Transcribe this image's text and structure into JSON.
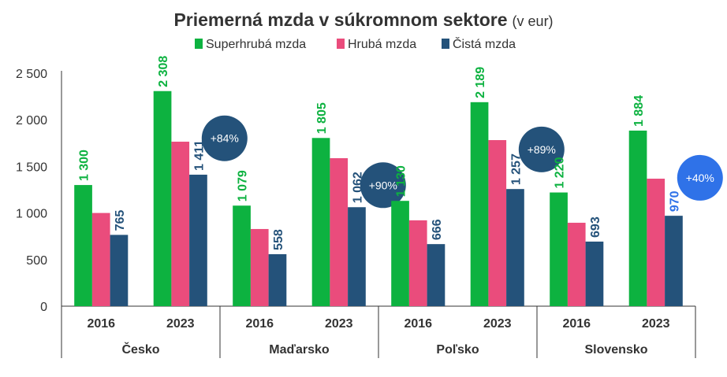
{
  "chart_data": {
    "type": "bar",
    "title": "Priemerná mzda v súkromnom sektore",
    "title_unit": "(v eur)",
    "ylim": [
      0,
      2500
    ],
    "yticks": [
      "0",
      "500",
      "1 000",
      "1 500",
      "2 000",
      "2 500"
    ],
    "ytick_values": [
      0,
      500,
      1000,
      1500,
      2000,
      2500
    ],
    "grid": false,
    "legend_position": "top",
    "colors": {
      "superhruba": "#0db240",
      "hruba": "#ea4c7c",
      "cista": "#24527a",
      "highlight": "#2f72e8",
      "text": "#333333"
    },
    "series": [
      {
        "name": "Superhrubá mzda",
        "key": "superhruba",
        "labeled": true
      },
      {
        "name": "Hrubá mzda",
        "key": "hruba",
        "labeled": false
      },
      {
        "name": "Čistá mzda",
        "key": "cista",
        "labeled": true
      }
    ],
    "groups": [
      {
        "country": "Česko",
        "growth": "+84%",
        "bubble_color": "#24527a",
        "years": [
          {
            "year": "2016",
            "values": [
              1300,
              1000,
              765
            ],
            "labels": [
              "1 300",
              "",
              "765"
            ]
          },
          {
            "year": "2023",
            "values": [
              2308,
              1765,
              1411
            ],
            "labels": [
              "2 308",
              "",
              "1 411"
            ]
          }
        ]
      },
      {
        "country": "Maďarsko",
        "growth": "+90%",
        "bubble_color": "#24527a",
        "years": [
          {
            "year": "2016",
            "values": [
              1079,
              828,
              558
            ],
            "labels": [
              "1 079",
              "",
              "558"
            ]
          },
          {
            "year": "2023",
            "values": [
              1805,
              1588,
              1062
            ],
            "labels": [
              "1 805",
              "",
              "1 062"
            ]
          }
        ]
      },
      {
        "country": "Poľsko",
        "growth": "+89%",
        "bubble_color": "#24527a",
        "years": [
          {
            "year": "2016",
            "values": [
              1130,
              921,
              666
            ],
            "labels": [
              "1 130",
              "",
              "666"
            ]
          },
          {
            "year": "2023",
            "values": [
              2189,
              1782,
              1257
            ],
            "labels": [
              "2 189",
              "",
              "1 257"
            ]
          }
        ]
      },
      {
        "country": "Slovensko",
        "growth": "+40%",
        "bubble_color": "#2f72e8",
        "highlight_cista_2023": true,
        "years": [
          {
            "year": "2016",
            "values": [
              1220,
              895,
              693
            ],
            "labels": [
              "1 220",
              "",
              "693"
            ]
          },
          {
            "year": "2023",
            "values": [
              1884,
              1368,
              970
            ],
            "labels": [
              "1 884",
              "",
              "970"
            ]
          }
        ]
      }
    ]
  }
}
